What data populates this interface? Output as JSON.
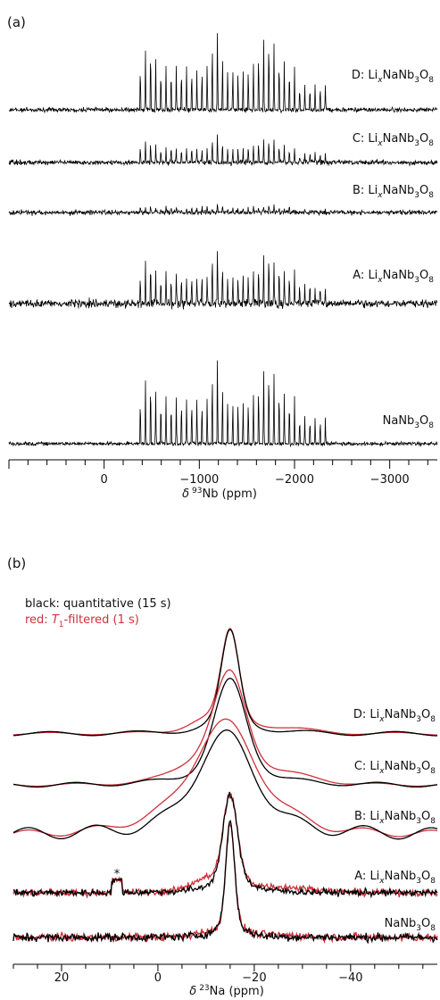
{
  "chart_data": [
    {
      "panel_label": "(a)",
      "type": "line",
      "xlabel_symbol": "δ",
      "xlabel_sup": "93",
      "xlabel_text": "Nb (ppm)",
      "xlim": [
        1000,
        -3500
      ],
      "xticks": [
        {
          "value": 0,
          "label": "0"
        },
        {
          "value": -1000,
          "label": "−1000"
        },
        {
          "value": -2000,
          "label": "−2000"
        },
        {
          "value": -3000,
          "label": "−3000"
        }
      ],
      "series": [
        {
          "prefix": "D: Li",
          "sub": "x",
          "mid": "NaNb",
          "sub2": "3",
          "mid2": "O",
          "sub3": "8",
          "color": "#000000",
          "noise": 0.55,
          "scale": 1.0
        },
        {
          "prefix": "C: Li",
          "sub": "x",
          "mid": "NaNb",
          "sub2": "3",
          "mid2": "O",
          "sub3": "8",
          "color": "#000000",
          "noise": 0.6,
          "scale": 0.38
        },
        {
          "prefix": "B: Li",
          "sub": "x",
          "mid": "NaNb",
          "sub2": "3",
          "mid2": "O",
          "sub3": "8",
          "color": "#000000",
          "noise": 0.6,
          "scale": 0.1
        },
        {
          "prefix": "A: Li",
          "sub": "x",
          "mid": "NaNb",
          "sub2": "3",
          "mid2": "O",
          "sub3": "8",
          "color": "#000000",
          "noise": 1.0,
          "scale": 0.7
        },
        {
          "prefix": "NaNb",
          "sub": "",
          "mid": "",
          "sub2": "3",
          "mid2": "O",
          "sub3": "8",
          "color": "#000000",
          "noise": 0.45,
          "scale": 1.0
        }
      ]
    },
    {
      "panel_label": "(b)",
      "type": "line",
      "xlabel_symbol": "δ",
      "xlabel_sup": "23",
      "xlabel_text": "Na (ppm)",
      "xlim": [
        30,
        -58
      ],
      "xticks": [
        {
          "value": 20,
          "label": "20"
        },
        {
          "value": 0,
          "label": "0"
        },
        {
          "value": -20,
          "label": "−20"
        },
        {
          "value": -40,
          "label": "−40"
        }
      ],
      "legend": {
        "black": "black: quantitative (15 s)",
        "red_prefix": "red: ",
        "red_T": "T",
        "red_sub": "1",
        "red_suffix": "-filtered (1 s)",
        "black_color": "#000000",
        "red_color": "#d0303a"
      },
      "annotation": {
        "text": "*",
        "x": 8.5
      },
      "series": [
        {
          "prefix": "D: Li",
          "sub": "x",
          "mid": "NaNb",
          "sub2": "3",
          "mid2": "O",
          "sub3": "8",
          "peak_center": -15,
          "peak_width": 2.5,
          "red_shoulder": 0.3
        },
        {
          "prefix": "C: Li",
          "sub": "x",
          "mid": "NaNb",
          "sub2": "3",
          "mid2": "O",
          "sub3": "8",
          "peak_center": -15,
          "peak_width": 4.5,
          "red_shoulder": 0.55
        },
        {
          "prefix": "B: Li",
          "sub": "x",
          "mid": "NaNb",
          "sub2": "3",
          "mid2": "O",
          "sub3": "8",
          "peak_center": -14,
          "peak_width": 8,
          "red_shoulder": 0.6
        },
        {
          "prefix": "A: Li",
          "sub": "x",
          "mid": "NaNb",
          "sub2": "3",
          "mid2": "O",
          "sub3": "8",
          "peak_center": -15,
          "peak_width": 2,
          "red_shoulder": 0.35
        },
        {
          "prefix": "NaNb",
          "sub": "",
          "mid": "",
          "sub2": "3",
          "mid2": "O",
          "sub3": "8",
          "peak_center": -15,
          "peak_width": 1.2,
          "red_shoulder": 0.1
        }
      ]
    }
  ]
}
